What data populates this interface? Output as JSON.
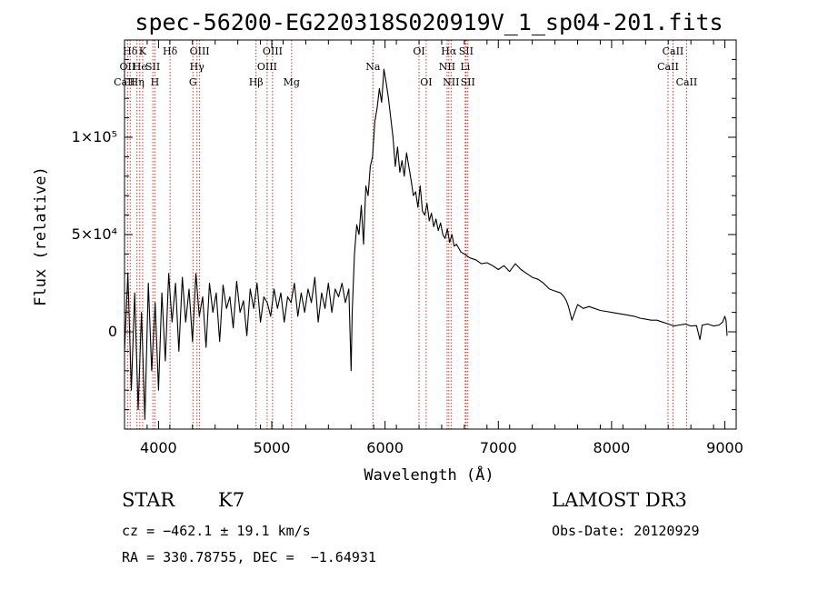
{
  "chart_data": {
    "type": "line",
    "title": "spec-56200-EG220318S020919V_1_sp04-201.fits",
    "xlabel": "Wavelength (Å)",
    "ylabel": "Flux (relative)",
    "xlim": [
      3700,
      9100
    ],
    "ylim": [
      -50000,
      150000
    ],
    "x_ticks": [
      4000,
      5000,
      6000,
      7000,
      8000,
      9000
    ],
    "y_ticks": [
      {
        "value": 0,
        "label": "0"
      },
      {
        "value": 50000,
        "label": "5×10⁴"
      },
      {
        "value": 100000,
        "label": "1×10⁵"
      }
    ],
    "series": [
      {
        "name": "flux",
        "x": [
          3700,
          3730,
          3760,
          3790,
          3820,
          3850,
          3880,
          3910,
          3940,
          3970,
          4000,
          4030,
          4060,
          4090,
          4120,
          4150,
          4180,
          4210,
          4240,
          4270,
          4300,
          4330,
          4360,
          4390,
          4420,
          4450,
          4480,
          4510,
          4540,
          4570,
          4600,
          4630,
          4660,
          4690,
          4720,
          4750,
          4780,
          4810,
          4840,
          4870,
          4900,
          4930,
          4960,
          4990,
          5020,
          5050,
          5080,
          5110,
          5140,
          5170,
          5200,
          5230,
          5260,
          5290,
          5320,
          5350,
          5380,
          5410,
          5440,
          5470,
          5500,
          5530,
          5560,
          5590,
          5620,
          5650,
          5680,
          5700,
          5710,
          5730,
          5750,
          5770,
          5790,
          5810,
          5830,
          5850,
          5870,
          5890,
          5910,
          5930,
          5950,
          5970,
          5990,
          6010,
          6030,
          6050,
          6070,
          6090,
          6110,
          6130,
          6150,
          6170,
          6190,
          6210,
          6230,
          6250,
          6270,
          6290,
          6310,
          6330,
          6350,
          6370,
          6390,
          6410,
          6430,
          6450,
          6470,
          6490,
          6510,
          6530,
          6550,
          6570,
          6590,
          6610,
          6630,
          6650,
          6670,
          6700,
          6750,
          6800,
          6850,
          6900,
          6950,
          7000,
          7050,
          7100,
          7150,
          7200,
          7250,
          7300,
          7350,
          7400,
          7450,
          7500,
          7550,
          7580,
          7600,
          7620,
          7650,
          7700,
          7750,
          7800,
          7850,
          7900,
          7950,
          8000,
          8050,
          8100,
          8150,
          8200,
          8250,
          8300,
          8350,
          8400,
          8450,
          8500,
          8550,
          8600,
          8650,
          8700,
          8750,
          8780,
          8800,
          8850,
          8900,
          8950,
          8980,
          9000,
          9010,
          9020
        ],
        "y": [
          -10000,
          30000,
          -30000,
          20000,
          -40000,
          10000,
          -45000,
          25000,
          -20000,
          15000,
          -30000,
          20000,
          -15000,
          30000,
          5000,
          25000,
          -10000,
          28000,
          5000,
          22000,
          -5000,
          30000,
          8000,
          18000,
          -8000,
          25000,
          10000,
          20000,
          -5000,
          24000,
          12000,
          18000,
          2000,
          26000,
          10000,
          16000,
          -2000,
          22000,
          12000,
          25000,
          5000,
          18000,
          15000,
          8000,
          22000,
          12000,
          20000,
          5000,
          18000,
          15000,
          25000,
          8000,
          20000,
          10000,
          22000,
          15000,
          28000,
          5000,
          20000,
          12000,
          25000,
          10000,
          22000,
          18000,
          25000,
          15000,
          22000,
          -20000,
          10000,
          40000,
          55000,
          50000,
          65000,
          45000,
          75000,
          70000,
          85000,
          90000,
          108000,
          115000,
          125000,
          118000,
          135000,
          128000,
          120000,
          110000,
          100000,
          85000,
          95000,
          82000,
          88000,
          80000,
          92000,
          85000,
          78000,
          70000,
          72000,
          64000,
          75000,
          62000,
          60000,
          66000,
          57000,
          61000,
          54000,
          58000,
          52000,
          56000,
          50000,
          48000,
          53000,
          46000,
          50000,
          44000,
          45000,
          43000,
          41000,
          40000,
          38000,
          37000,
          35000,
          35500,
          34000,
          32000,
          34000,
          31000,
          35000,
          32000,
          30000,
          28000,
          27000,
          25000,
          22000,
          21000,
          20000,
          18000,
          16000,
          13000,
          6000,
          14000,
          12000,
          13000,
          12000,
          11000,
          10500,
          10000,
          9500,
          9000,
          8500,
          8000,
          7000,
          6500,
          6000,
          6000,
          5000,
          4000,
          3000,
          3500,
          4000,
          3000,
          3200,
          -4000,
          3500,
          4000,
          3000,
          3500,
          5000,
          8000,
          6000,
          -2000
        ]
      }
    ],
    "lines": [
      {
        "label": "Hδ",
        "x": 3750,
        "row": 0
      },
      {
        "label": "OII",
        "x": 3727,
        "row": 1
      },
      {
        "label": "CaII",
        "x": 3700,
        "row": 2
      },
      {
        "label": "K",
        "x": 3860,
        "row": 0
      },
      {
        "label": "He",
        "x": 3835,
        "row": 1
      },
      {
        "label": "Hη",
        "x": 3810,
        "row": 2
      },
      {
        "label": "SII",
        "x": 3950,
        "row": 1
      },
      {
        "label": "H",
        "x": 3968,
        "row": 2
      },
      {
        "label": "Hδ",
        "x": 4102,
        "row": 0
      },
      {
        "label": "OIII",
        "x": 4363,
        "row": 0
      },
      {
        "label": "Hγ",
        "x": 4340,
        "row": 1
      },
      {
        "label": "G",
        "x": 4304,
        "row": 2
      },
      {
        "label": "OIII",
        "x": 5007,
        "row": 0
      },
      {
        "label": "OIII",
        "x": 4959,
        "row": 1
      },
      {
        "label": "Hβ",
        "x": 4861,
        "row": 2
      },
      {
        "label": "Mg",
        "x": 5175,
        "row": 2
      },
      {
        "label": "Na",
        "x": 5893,
        "row": 1
      },
      {
        "label": "OI",
        "x": 6300,
        "row": 0
      },
      {
        "label": "OI",
        "x": 6363,
        "row": 2
      },
      {
        "label": "Hα",
        "x": 6563,
        "row": 0
      },
      {
        "label": "SII",
        "x": 6716,
        "row": 0
      },
      {
        "label": "NII",
        "x": 6548,
        "row": 1
      },
      {
        "label": "Li",
        "x": 6708,
        "row": 1
      },
      {
        "label": "NII",
        "x": 6583,
        "row": 2
      },
      {
        "label": "SII",
        "x": 6731,
        "row": 2
      },
      {
        "label": "CaII",
        "x": 8542,
        "row": 0
      },
      {
        "label": "CaII",
        "x": 8498,
        "row": 1
      },
      {
        "label": "CaII",
        "x": 8662,
        "row": 2
      }
    ],
    "grid": false,
    "legend": "none"
  },
  "info": {
    "object_class": "STAR",
    "subclass": "K7",
    "cz": "cz = −462.1 ± 19.1 km/s",
    "coords": "RA = 330.78755, DEC =  −1.64931",
    "survey": "LAMOST DR3",
    "obs_date": "Obs-Date: 20120929"
  },
  "colors": {
    "axis": "#000000",
    "line_marker": "#c0392b",
    "spectrum": "#000000"
  }
}
